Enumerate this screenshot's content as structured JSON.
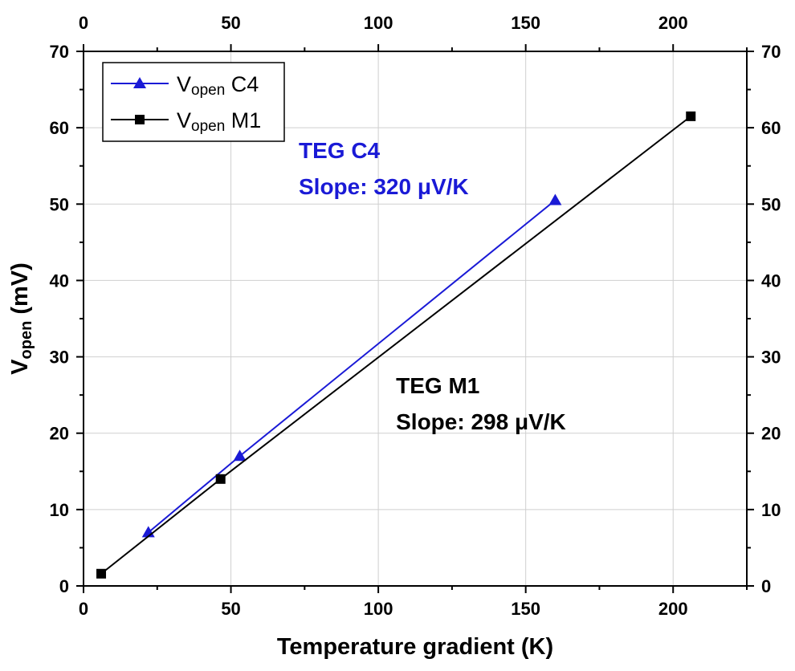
{
  "chart_data": {
    "type": "line",
    "xlabel": "Temperature gradient (K)",
    "ylabel_main": "V",
    "ylabel_sub": "open",
    "ylabel_unit": " (mV)",
    "xlim": [
      0,
      225
    ],
    "ylim": [
      0,
      70
    ],
    "x_ticks": [
      0,
      50,
      100,
      150,
      200
    ],
    "y_ticks": [
      0,
      10,
      20,
      30,
      40,
      50,
      60,
      70
    ],
    "grid": true,
    "legend_position": "top-left",
    "series": [
      {
        "name_main": "V",
        "name_sub": "open",
        "name_suffix": " C4",
        "color": "#1a1ad6",
        "marker": "triangle",
        "x": [
          22,
          53,
          160
        ],
        "y": [
          7,
          17,
          50.5
        ]
      },
      {
        "name_main": "V",
        "name_sub": "open",
        "name_suffix": " M1",
        "color": "#000000",
        "marker": "square",
        "x": [
          6,
          46.5,
          206
        ],
        "y": [
          1.6,
          14,
          61.5
        ]
      }
    ],
    "annotations": [
      {
        "lines": [
          "TEG C4",
          "Slope: 320 μV/K"
        ],
        "color": "#1a1ad6",
        "x": 73,
        "y": 56
      },
      {
        "lines": [
          "TEG M1",
          "Slope: 298 μV/K"
        ],
        "color": "#000000",
        "x": 106,
        "y": 25.2
      }
    ]
  }
}
